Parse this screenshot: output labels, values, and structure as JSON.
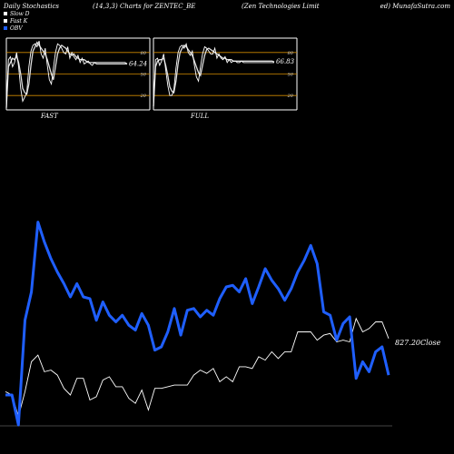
{
  "header": {
    "left": "Daily Stochastics",
    "mid": "(14,3,3) Charts for ZENTEC_BE",
    "right": "(Zen Technologies Limit",
    "site": "ed) MunafaSutra.com"
  },
  "legend": [
    {
      "label": "Slow D",
      "color": "#ffffff"
    },
    {
      "label": "Fast K",
      "color": "#ffffff"
    },
    {
      "label": "OBV",
      "color": "#1f5fff"
    }
  ],
  "colors": {
    "background": "#000000",
    "obv": "#1f5fff",
    "price": "#ffffff",
    "band": "#d08a00",
    "frame": "#ffffff"
  },
  "chart_data": [
    {
      "type": "line",
      "panel": "FAST",
      "label": "FAST",
      "ylim": [
        0,
        100
      ],
      "yticks": [
        20,
        50,
        80
      ],
      "last_value": "64.24",
      "x": [
        1,
        2,
        3,
        4,
        5,
        6,
        7,
        8,
        9,
        10,
        11,
        12,
        13,
        14,
        15,
        16,
        17,
        18,
        19,
        20,
        21,
        22,
        23,
        24,
        25,
        26,
        27,
        28,
        29,
        30,
        31,
        32,
        33,
        34,
        35,
        36,
        37,
        38,
        39,
        40,
        41,
        42,
        43,
        44,
        45,
        46,
        47,
        48,
        49,
        50,
        51,
        52,
        53,
        54,
        55,
        56,
        57,
        58,
        59,
        60
      ],
      "series": [
        {
          "name": "Slow D",
          "values": [
            3,
            60,
            66,
            72,
            70,
            75,
            66,
            50,
            30,
            24,
            22,
            36,
            62,
            82,
            88,
            94,
            90,
            86,
            82,
            78,
            70,
            60,
            50,
            42,
            60,
            78,
            86,
            90,
            88,
            86,
            82,
            78,
            76,
            78,
            74,
            72,
            70,
            70,
            70,
            68,
            66,
            66,
            66,
            66,
            66,
            66,
            66,
            66,
            66,
            66,
            66,
            66,
            66,
            66,
            66,
            66,
            66,
            66,
            66,
            64
          ]
        },
        {
          "name": "Fast K",
          "values": [
            0,
            70,
            74,
            60,
            66,
            80,
            60,
            30,
            12,
            18,
            24,
            60,
            82,
            90,
            92,
            88,
            96,
            78,
            72,
            86,
            62,
            42,
            36,
            58,
            80,
            92,
            90,
            86,
            80,
            78,
            88,
            72,
            80,
            74,
            70,
            76,
            66,
            72,
            64,
            66,
            68,
            64,
            62,
            66,
            64,
            64,
            64,
            64,
            64,
            64,
            64,
            64,
            64,
            64,
            64,
            64,
            64,
            64,
            64,
            64
          ]
        }
      ]
    },
    {
      "type": "line",
      "panel": "FULL",
      "label": "FULL",
      "ylim": [
        0,
        100
      ],
      "yticks": [
        20,
        50,
        80
      ],
      "last_value": "66.83",
      "x": [
        1,
        2,
        3,
        4,
        5,
        6,
        7,
        8,
        9,
        10,
        11,
        12,
        13,
        14,
        15,
        16,
        17,
        18,
        19,
        20,
        21,
        22,
        23,
        24,
        25,
        26,
        27,
        28,
        29,
        30,
        31,
        32,
        33,
        34,
        35,
        36,
        37,
        38,
        39,
        40,
        41,
        42,
        43,
        44,
        45,
        46,
        47,
        48,
        49,
        50,
        51,
        52,
        53,
        54,
        55,
        56,
        57,
        58,
        59,
        60
      ],
      "series": [
        {
          "name": "Slow D",
          "values": [
            5,
            60,
            68,
            70,
            70,
            72,
            62,
            48,
            32,
            26,
            24,
            40,
            64,
            80,
            86,
            90,
            88,
            84,
            80,
            76,
            68,
            60,
            52,
            48,
            62,
            76,
            84,
            86,
            84,
            82,
            80,
            78,
            76,
            74,
            72,
            72,
            70,
            70,
            70,
            68,
            68,
            68,
            68,
            68,
            68,
            68,
            68,
            68,
            68,
            68,
            68,
            68,
            68,
            68,
            68,
            68,
            68,
            68,
            68,
            67
          ]
        },
        {
          "name": "Fast K",
          "values": [
            0,
            70,
            72,
            62,
            68,
            78,
            56,
            34,
            20,
            20,
            28,
            58,
            80,
            88,
            90,
            86,
            92,
            80,
            76,
            82,
            62,
            46,
            40,
            60,
            78,
            88,
            86,
            82,
            78,
            78,
            86,
            72,
            78,
            72,
            70,
            74,
            66,
            70,
            66,
            68,
            68,
            66,
            66,
            68,
            66,
            66,
            66,
            66,
            66,
            66,
            66,
            66,
            66,
            66,
            66,
            66,
            66,
            66,
            66,
            66
          ]
        }
      ]
    },
    {
      "type": "line",
      "panel": "OBV and Close",
      "close_label": "827.20Close",
      "x": [
        1,
        2,
        3,
        4,
        5,
        6,
        7,
        8,
        9,
        10,
        11,
        12,
        13,
        14,
        15,
        16,
        17,
        18,
        19,
        20,
        21,
        22,
        23,
        24,
        25,
        26,
        27,
        28,
        29,
        30,
        31,
        32,
        33,
        34,
        35,
        36,
        37,
        38,
        39,
        40,
        41,
        42,
        43,
        44,
        45,
        46,
        47,
        48,
        49,
        50,
        51,
        52,
        53,
        54,
        55,
        56,
        57,
        58,
        59,
        60
      ],
      "series": [
        {
          "name": "OBV",
          "values": [
            18,
            18,
            0,
            63,
            80,
            122,
            110,
            100,
            92,
            85,
            77,
            85,
            77,
            76,
            63,
            74,
            66,
            62,
            66,
            60,
            57,
            67,
            60,
            45,
            47,
            56,
            70,
            54,
            69,
            70,
            65,
            69,
            66,
            76,
            83,
            84,
            80,
            88,
            73,
            83,
            94,
            87,
            82,
            75,
            82,
            92,
            99,
            108,
            97,
            68,
            66,
            51,
            61,
            65,
            28,
            38,
            32,
            44,
            47,
            30
          ]
        },
        {
          "name": "Close",
          "values": [
            20,
            18,
            5,
            20,
            38,
            42,
            32,
            33,
            30,
            22,
            18,
            28,
            28,
            15,
            17,
            27,
            29,
            23,
            23,
            16,
            13,
            21,
            9,
            22,
            22,
            23,
            24,
            24,
            24,
            30,
            33,
            31,
            34,
            26,
            29,
            26,
            35,
            35,
            34,
            41,
            39,
            44,
            40,
            44,
            44,
            56,
            56,
            56,
            51,
            54,
            55,
            50,
            51,
            50,
            64,
            56,
            58,
            62,
            62,
            52
          ]
        }
      ]
    }
  ]
}
